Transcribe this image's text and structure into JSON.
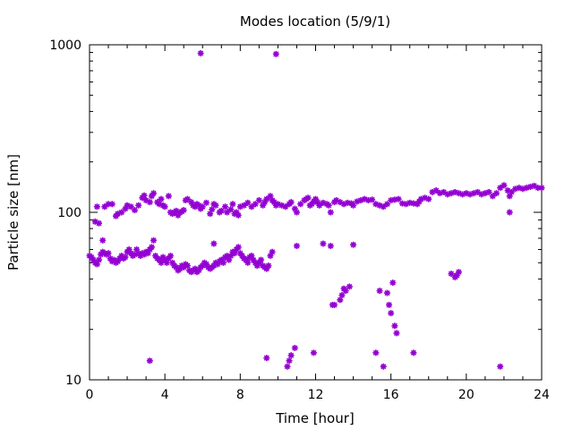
{
  "chart_data": {
    "type": "scatter",
    "title": "Modes location (5/9/1)",
    "xlabel": "Time [hour]",
    "ylabel": "Particle size [nm]",
    "xlim": [
      0,
      24
    ],
    "ylim": [
      10,
      1000
    ],
    "yscale": "log",
    "grid": false,
    "legend": "none",
    "marker_color": "#9400D3",
    "x_ticks": [
      0,
      4,
      8,
      12,
      16,
      20,
      24
    ],
    "x_tick_labels": [
      "0",
      "4",
      "8",
      "12",
      "16",
      "20",
      "24"
    ],
    "y_ticks": [
      10,
      100,
      1000
    ],
    "y_tick_labels": [
      "10",
      "100",
      "1000"
    ],
    "series": [
      {
        "points": [
          [
            0.0,
            55
          ],
          [
            0.1,
            54
          ],
          [
            0.2,
            52
          ],
          [
            0.3,
            50
          ],
          [
            0.4,
            49
          ],
          [
            0.5,
            52
          ],
          [
            0.6,
            56
          ],
          [
            0.7,
            58
          ],
          [
            0.8,
            57
          ],
          [
            0.9,
            56
          ],
          [
            1.0,
            57
          ],
          [
            1.1,
            53
          ],
          [
            1.2,
            51
          ],
          [
            1.3,
            52
          ],
          [
            1.4,
            50
          ],
          [
            1.5,
            51
          ],
          [
            1.6,
            53
          ],
          [
            1.7,
            55
          ],
          [
            1.8,
            53
          ],
          [
            1.9,
            54
          ],
          [
            2.0,
            58
          ],
          [
            2.1,
            60
          ],
          [
            2.2,
            57
          ],
          [
            2.3,
            55
          ],
          [
            2.4,
            56
          ],
          [
            2.5,
            60
          ],
          [
            2.6,
            57
          ],
          [
            2.7,
            55
          ],
          [
            2.8,
            57
          ],
          [
            2.9,
            56
          ],
          [
            3.0,
            58
          ],
          [
            3.1,
            57
          ],
          [
            3.2,
            60
          ],
          [
            3.3,
            62
          ],
          [
            3.4,
            68
          ],
          [
            3.5,
            55
          ],
          [
            3.6,
            53
          ],
          [
            3.7,
            52
          ],
          [
            3.8,
            50
          ],
          [
            3.9,
            54
          ],
          [
            4.0,
            52
          ],
          [
            4.1,
            50
          ],
          [
            4.2,
            53
          ],
          [
            4.3,
            55
          ],
          [
            4.4,
            50
          ],
          [
            4.5,
            48
          ],
          [
            4.6,
            47
          ],
          [
            4.7,
            45
          ],
          [
            4.8,
            46
          ],
          [
            4.9,
            48
          ],
          [
            5.0,
            47
          ],
          [
            5.1,
            49
          ],
          [
            5.2,
            48
          ],
          [
            5.3,
            45
          ],
          [
            5.4,
            44
          ],
          [
            5.5,
            45
          ],
          [
            5.6,
            46
          ],
          [
            5.7,
            44
          ],
          [
            5.8,
            45
          ],
          [
            5.9,
            47
          ],
          [
            6.0,
            48
          ],
          [
            6.1,
            50
          ],
          [
            6.2,
            49
          ],
          [
            6.3,
            47
          ],
          [
            6.4,
            46
          ],
          [
            6.5,
            47
          ],
          [
            6.6,
            48
          ],
          [
            6.7,
            50
          ],
          [
            6.8,
            49
          ],
          [
            6.9,
            51
          ],
          [
            7.0,
            52
          ],
          [
            7.1,
            50
          ],
          [
            7.2,
            54
          ],
          [
            7.3,
            55
          ],
          [
            7.4,
            52
          ],
          [
            7.5,
            55
          ],
          [
            7.6,
            58
          ],
          [
            7.7,
            57
          ],
          [
            7.8,
            60
          ],
          [
            7.9,
            62
          ],
          [
            8.0,
            57
          ],
          [
            8.1,
            55
          ],
          [
            8.2,
            53
          ],
          [
            8.3,
            52
          ],
          [
            8.4,
            50
          ],
          [
            8.5,
            54
          ],
          [
            8.6,
            55
          ],
          [
            8.7,
            52
          ],
          [
            8.8,
            50
          ],
          [
            8.9,
            48
          ],
          [
            9.0,
            50
          ],
          [
            9.1,
            52
          ],
          [
            9.2,
            48
          ],
          [
            9.3,
            47
          ],
          [
            9.4,
            46
          ],
          [
            9.5,
            48
          ],
          [
            9.6,
            55
          ],
          [
            9.7,
            58
          ],
          [
            0.3,
            88
          ],
          [
            0.5,
            86
          ],
          [
            0.4,
            108
          ],
          [
            0.8,
            108
          ],
          [
            1.0,
            112
          ],
          [
            1.2,
            112
          ],
          [
            1.4,
            95
          ],
          [
            1.5,
            98
          ],
          [
            1.7,
            100
          ],
          [
            1.9,
            105
          ],
          [
            2.0,
            110
          ],
          [
            2.2,
            108
          ],
          [
            2.4,
            103
          ],
          [
            2.6,
            110
          ],
          [
            2.8,
            122
          ],
          [
            2.9,
            126
          ],
          [
            3.0,
            118
          ],
          [
            3.2,
            115
          ],
          [
            3.3,
            125
          ],
          [
            3.4,
            130
          ],
          [
            3.6,
            115
          ],
          [
            3.7,
            112
          ],
          [
            3.8,
            120
          ],
          [
            3.9,
            110
          ],
          [
            4.0,
            108
          ],
          [
            4.2,
            125
          ],
          [
            4.3,
            100
          ],
          [
            4.4,
            98
          ],
          [
            4.5,
            100
          ],
          [
            4.6,
            102
          ],
          [
            4.7,
            96
          ],
          [
            4.8,
            100
          ],
          [
            4.9,
            101
          ],
          [
            5.0,
            103
          ],
          [
            5.1,
            118
          ],
          [
            5.2,
            120
          ],
          [
            5.4,
            115
          ],
          [
            5.5,
            110
          ],
          [
            5.6,
            108
          ],
          [
            5.7,
            112
          ],
          [
            5.8,
            110
          ],
          [
            5.9,
            105
          ],
          [
            6.0,
            108
          ],
          [
            6.2,
            114
          ],
          [
            6.4,
            98
          ],
          [
            6.5,
            104
          ],
          [
            6.6,
            112
          ],
          [
            6.7,
            110
          ],
          [
            6.9,
            100
          ],
          [
            7.0,
            102
          ],
          [
            7.2,
            108
          ],
          [
            7.3,
            100
          ],
          [
            7.5,
            104
          ],
          [
            7.6,
            112
          ],
          [
            7.7,
            98
          ],
          [
            7.8,
            100
          ],
          [
            7.9,
            96
          ],
          [
            8.0,
            108
          ],
          [
            8.2,
            110
          ],
          [
            8.4,
            114
          ],
          [
            8.6,
            108
          ],
          [
            8.8,
            112
          ],
          [
            9.0,
            118
          ],
          [
            9.2,
            110
          ],
          [
            9.3,
            115
          ],
          [
            9.4,
            120
          ],
          [
            9.6,
            125
          ],
          [
            9.7,
            118
          ],
          [
            9.8,
            115
          ],
          [
            9.9,
            110
          ],
          [
            10.0,
            112
          ],
          [
            10.2,
            110
          ],
          [
            10.4,
            108
          ],
          [
            10.6,
            112
          ],
          [
            10.7,
            115
          ],
          [
            10.9,
            105
          ],
          [
            11.0,
            100
          ],
          [
            11.2,
            112
          ],
          [
            11.4,
            118
          ],
          [
            11.5,
            120
          ],
          [
            11.6,
            122
          ],
          [
            11.7,
            110
          ],
          [
            11.8,
            112
          ],
          [
            11.9,
            116
          ],
          [
            12.0,
            120
          ],
          [
            12.1,
            115
          ],
          [
            12.2,
            110
          ],
          [
            12.4,
            114
          ],
          [
            12.6,
            112
          ],
          [
            12.7,
            110
          ],
          [
            12.8,
            100
          ],
          [
            13.0,
            115
          ],
          [
            13.1,
            118
          ],
          [
            13.3,
            115
          ],
          [
            13.5,
            112
          ],
          [
            13.7,
            114
          ],
          [
            13.9,
            113
          ],
          [
            14.0,
            110
          ],
          [
            14.2,
            116
          ],
          [
            14.4,
            118
          ],
          [
            14.6,
            120
          ],
          [
            14.8,
            118
          ],
          [
            15.0,
            119
          ],
          [
            15.2,
            112
          ],
          [
            15.4,
            110
          ],
          [
            15.6,
            108
          ],
          [
            15.8,
            112
          ],
          [
            16.0,
            118
          ],
          [
            16.2,
            119
          ],
          [
            16.4,
            120
          ],
          [
            16.6,
            113
          ],
          [
            16.8,
            112
          ],
          [
            17.0,
            114
          ],
          [
            17.2,
            113
          ],
          [
            17.4,
            112
          ],
          [
            17.5,
            116
          ],
          [
            17.6,
            120
          ],
          [
            17.8,
            122
          ],
          [
            18.0,
            120
          ],
          [
            18.2,
            132
          ],
          [
            18.4,
            135
          ],
          [
            18.6,
            130
          ],
          [
            18.8,
            132
          ],
          [
            19.0,
            128
          ],
          [
            19.2,
            130
          ],
          [
            19.4,
            132
          ],
          [
            19.6,
            130
          ],
          [
            19.8,
            128
          ],
          [
            20.0,
            130
          ],
          [
            20.2,
            128
          ],
          [
            20.4,
            130
          ],
          [
            20.6,
            132
          ],
          [
            20.8,
            128
          ],
          [
            21.0,
            130
          ],
          [
            21.2,
            132
          ],
          [
            21.4,
            125
          ],
          [
            21.6,
            130
          ],
          [
            21.8,
            140
          ],
          [
            22.0,
            145
          ],
          [
            22.2,
            135
          ],
          [
            22.3,
            125
          ],
          [
            22.4,
            132
          ],
          [
            22.6,
            138
          ],
          [
            22.8,
            140
          ],
          [
            23.0,
            138
          ],
          [
            23.2,
            140
          ],
          [
            23.4,
            142
          ],
          [
            23.6,
            144
          ],
          [
            23.8,
            140
          ],
          [
            24.0,
            140
          ],
          [
            5.9,
            890
          ],
          [
            9.9,
            880
          ],
          [
            0.7,
            68
          ],
          [
            3.2,
            13
          ],
          [
            6.6,
            65
          ],
          [
            9.4,
            13.5
          ],
          [
            10.5,
            12
          ],
          [
            10.6,
            13
          ],
          [
            10.7,
            14
          ],
          [
            10.9,
            15.5
          ],
          [
            11.0,
            63
          ],
          [
            11.9,
            14.5
          ],
          [
            12.4,
            65
          ],
          [
            12.8,
            63
          ],
          [
            12.9,
            28
          ],
          [
            13.0,
            28
          ],
          [
            13.3,
            30
          ],
          [
            13.4,
            32
          ],
          [
            13.5,
            35
          ],
          [
            13.6,
            34
          ],
          [
            13.8,
            36
          ],
          [
            14.0,
            64
          ],
          [
            15.2,
            14.5
          ],
          [
            15.4,
            34
          ],
          [
            15.6,
            12
          ],
          [
            15.8,
            33
          ],
          [
            15.9,
            28
          ],
          [
            16.0,
            25
          ],
          [
            16.1,
            38
          ],
          [
            16.2,
            21
          ],
          [
            16.3,
            19
          ],
          [
            17.2,
            14.5
          ],
          [
            19.2,
            43
          ],
          [
            19.4,
            41
          ],
          [
            19.5,
            42
          ],
          [
            19.6,
            44
          ],
          [
            21.8,
            12
          ],
          [
            22.3,
            100
          ]
        ]
      }
    ]
  }
}
